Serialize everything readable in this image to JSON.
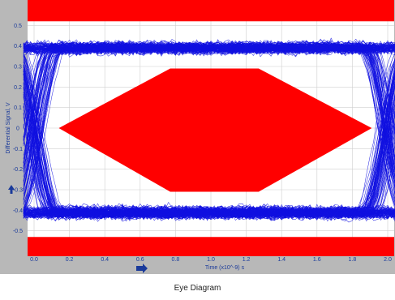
{
  "caption": "Eye Diagram",
  "chart_data": {
    "type": "line",
    "title": "",
    "xlabel": "Time (x10^-9) s",
    "ylabel": "Differential Signal, V",
    "xlim": [
      0.0,
      2.0
    ],
    "ylim": [
      -0.6,
      0.6
    ],
    "x_ticks": [
      "0.0",
      "0.2",
      "0.4",
      "0.6",
      "0.8",
      "1.0",
      "1.2",
      "1.4",
      "1.6",
      "1.8",
      "2.0"
    ],
    "y_ticks": [
      "0.5",
      "0.4",
      "0.3",
      "0.2",
      "0.1",
      "0",
      "-0.1",
      "-0.2",
      "-0.3",
      "-0.4",
      "-0.5"
    ],
    "grid": true,
    "trace_color": "#1010e0",
    "mask_color": "#ff0000",
    "background_color": "#ffffff",
    "frame_color": "#b8b8b8",
    "eye": {
      "high_level": 0.39,
      "low_level": -0.41,
      "crossing_times": [
        0.0,
        2.0
      ],
      "crossing_level": 0.0,
      "rise_time": 0.24,
      "jitter": 0.07,
      "noise": 0.025
    },
    "mask": {
      "hexagon": [
        [
          0.14,
          0.0
        ],
        [
          0.77,
          0.29
        ],
        [
          1.27,
          0.29
        ],
        [
          1.91,
          0.0
        ],
        [
          1.27,
          -0.31
        ],
        [
          0.77,
          -0.31
        ]
      ],
      "upper_limit": 0.52,
      "lower_limit": -0.53
    },
    "icons": [
      "up-arrow-icon",
      "right-arrow-icon"
    ]
  }
}
